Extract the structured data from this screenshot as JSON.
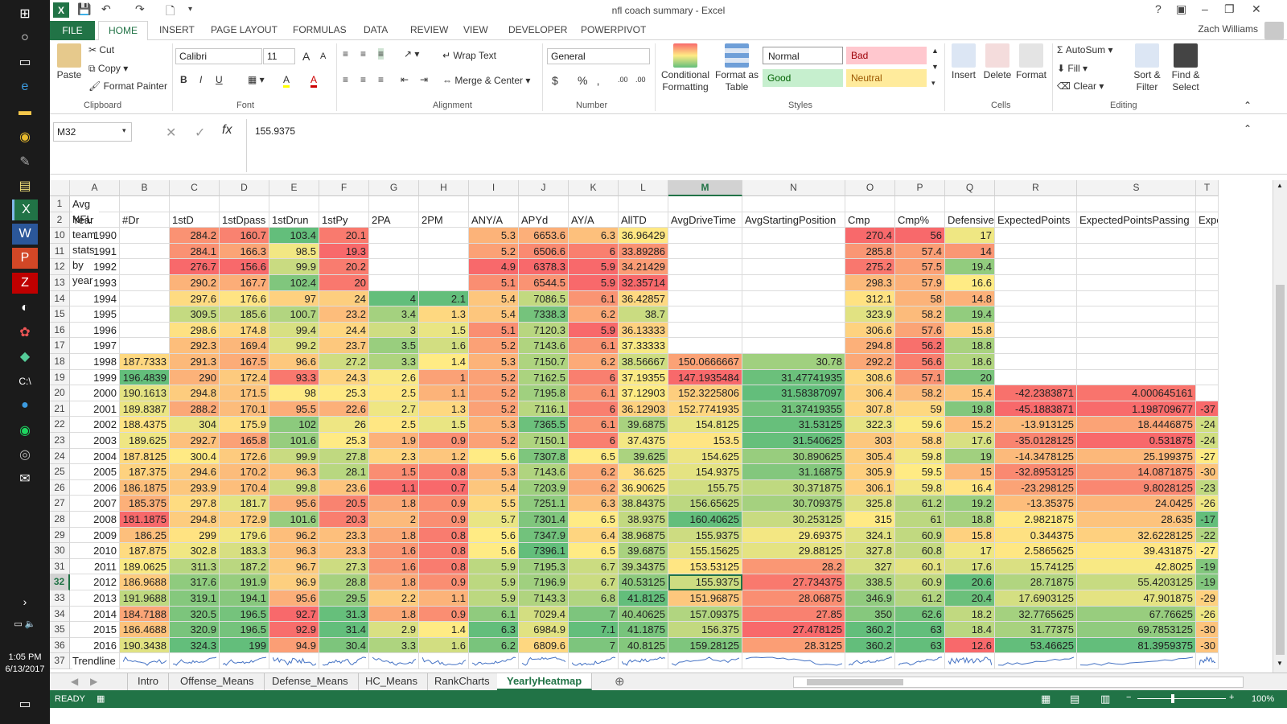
{
  "taskbar": {
    "icons": [
      "windows-start-icon",
      "cortana-icon",
      "task-view-icon",
      "edge-icon",
      "file-explorer-icon",
      "chrome-icon",
      "pen-icon",
      "notepad-icon",
      "excel-icon",
      "word-icon",
      "powerpoint-icon",
      "filezilla-icon",
      "app-icon",
      "settings-icon",
      "app-icon",
      "cmd-icon",
      "app-icon",
      "spotify-icon",
      "app-icon",
      "mail-icon"
    ],
    "time": "1:05 PM",
    "date": "6/13/2017"
  },
  "window": {
    "title": "nfl coach summary - Excel",
    "help": "?",
    "minimize": "–",
    "maximize": "❐",
    "close": "✕"
  },
  "quick_access": {
    "save": "💾",
    "undo": "↶",
    "redo": "↷",
    "new": "🗋",
    "customize": "▾"
  },
  "ribbon_tabs": [
    "FILE",
    "HOME",
    "INSERT",
    "PAGE LAYOUT",
    "FORMULAS",
    "DATA",
    "REVIEW",
    "VIEW",
    "DEVELOPER",
    "POWERPIVOT"
  ],
  "user": "Zach Williams",
  "ribbon": {
    "clipboard": {
      "paste": "Paste",
      "cut": "Cut",
      "copy": "Copy",
      "format_painter": "Format Painter",
      "label": "Clipboard"
    },
    "font": {
      "name": "Calibri",
      "size": "11",
      "bold": "B",
      "italic": "I",
      "underline": "U",
      "grow": "A",
      "shrink": "A",
      "fill": "A",
      "font_color": "A",
      "label": "Font"
    },
    "alignment": {
      "wrap_text": "Wrap Text",
      "merge_center": "Merge & Center",
      "label": "Alignment"
    },
    "number": {
      "format": "General",
      "dollar": "$",
      "percent": "%",
      "comma": "‚",
      "inc_decimal": ".00",
      "dec_decimal": ".00",
      "label": "Number"
    },
    "styles": {
      "conditional": "Conditional Formatting",
      "format_table": "Format as Table",
      "normal": "Normal",
      "bad": "Bad",
      "good": "Good",
      "neutral": "Neutral",
      "label": "Styles"
    },
    "cells": {
      "insert": "Insert",
      "delete": "Delete",
      "format": "Format",
      "label": "Cells"
    },
    "editing": {
      "autosum": "AutoSum",
      "fill": "Fill",
      "clear": "Clear",
      "sort_filter": "Sort & Filter",
      "find_select": "Find & Select",
      "label": "Editing"
    }
  },
  "formula_bar": {
    "name_box": "M32",
    "cancel": "✕",
    "enter": "✓",
    "fx": "fx",
    "value": "155.9375"
  },
  "sheet": {
    "columns": [
      "A",
      "B",
      "C",
      "D",
      "E",
      "F",
      "G",
      "H",
      "I",
      "J",
      "K",
      "L",
      "M",
      "N",
      "O",
      "P",
      "Q",
      "R",
      "S",
      "T"
    ],
    "title_row": {
      "row": "1",
      "text": "Avg NFL team stats by year"
    },
    "header_row": {
      "row": "2",
      "cells": [
        "Year",
        "#Dr",
        "1stD",
        "1stDpass",
        "1stDrun",
        "1stPy",
        "2PA",
        "2PM",
        "ANY/A",
        "APYd",
        "AY/A",
        "AllTD",
        "AvgDriveTime",
        "AvgStartingPosition",
        "Cmp",
        "Cmp%",
        "Defensive",
        "ExpectedPoints",
        "ExpectedPointsPassing",
        "Expecte"
      ]
    },
    "rows": [
      {
        "n": "10",
        "c": [
          "1990",
          "",
          "284.2",
          "160.7",
          "103.4",
          "20.1",
          "",
          "",
          "5.3",
          "6653.6",
          "6.3",
          "36.96429",
          "",
          "",
          "270.4",
          "56",
          "17",
          "",
          "",
          ""
        ]
      },
      {
        "n": "11",
        "c": [
          "1991",
          "",
          "284.1",
          "166.3",
          "98.5",
          "19.3",
          "",
          "",
          "5.2",
          "6506.6",
          "6",
          "33.89286",
          "",
          "",
          "285.8",
          "57.4",
          "14",
          "",
          "",
          ""
        ]
      },
      {
        "n": "12",
        "c": [
          "1992",
          "",
          "276.7",
          "156.6",
          "99.9",
          "20.2",
          "",
          "",
          "4.9",
          "6378.3",
          "5.9",
          "34.21429",
          "",
          "",
          "275.2",
          "57.5",
          "19.4",
          "",
          "",
          ""
        ]
      },
      {
        "n": "13",
        "c": [
          "1993",
          "",
          "290.2",
          "167.7",
          "102.4",
          "20",
          "",
          "",
          "5.1",
          "6544.5",
          "5.9",
          "32.35714",
          "",
          "",
          "298.3",
          "57.9",
          "16.6",
          "",
          "",
          ""
        ]
      },
      {
        "n": "14",
        "c": [
          "1994",
          "",
          "297.6",
          "176.6",
          "97",
          "24",
          "4",
          "2.1",
          "5.4",
          "7086.5",
          "6.1",
          "36.42857",
          "",
          "",
          "312.1",
          "58",
          "14.8",
          "",
          "",
          ""
        ]
      },
      {
        "n": "15",
        "c": [
          "1995",
          "",
          "309.5",
          "185.6",
          "100.7",
          "23.2",
          "3.4",
          "1.3",
          "5.4",
          "7338.3",
          "6.2",
          "38.7",
          "",
          "",
          "323.9",
          "58.2",
          "19.4",
          "",
          "",
          ""
        ]
      },
      {
        "n": "16",
        "c": [
          "1996",
          "",
          "298.6",
          "174.8",
          "99.4",
          "24.4",
          "3",
          "1.5",
          "5.1",
          "7120.3",
          "5.9",
          "36.13333",
          "",
          "",
          "306.6",
          "57.6",
          "15.8",
          "",
          "",
          ""
        ]
      },
      {
        "n": "17",
        "c": [
          "1997",
          "",
          "292.3",
          "169.4",
          "99.2",
          "23.7",
          "3.5",
          "1.6",
          "5.2",
          "7143.6",
          "6.1",
          "37.33333",
          "",
          "",
          "294.8",
          "56.2",
          "18.8",
          "",
          "",
          ""
        ]
      },
      {
        "n": "18",
        "c": [
          "1998",
          "187.7333",
          "291.3",
          "167.5",
          "96.6",
          "27.2",
          "3.3",
          "1.4",
          "5.3",
          "7150.7",
          "6.2",
          "38.56667",
          "150.0666667",
          "30.78",
          "292.2",
          "56.6",
          "18.6",
          "",
          "",
          ""
        ]
      },
      {
        "n": "19",
        "c": [
          "1999",
          "196.4839",
          "290",
          "172.4",
          "93.3",
          "24.3",
          "2.6",
          "1",
          "5.2",
          "7162.5",
          "6",
          "37.19355",
          "147.1935484",
          "31.47741935",
          "308.6",
          "57.1",
          "20",
          "",
          "",
          ""
        ]
      },
      {
        "n": "20",
        "c": [
          "2000",
          "190.1613",
          "294.8",
          "171.5",
          "98",
          "25.3",
          "2.5",
          "1.1",
          "5.2",
          "7195.8",
          "6.1",
          "37.12903",
          "152.3225806",
          "31.58387097",
          "306.4",
          "58.2",
          "15.4",
          "-42.2383871",
          "4.000645161",
          ""
        ]
      },
      {
        "n": "21",
        "c": [
          "2001",
          "189.8387",
          "288.2",
          "170.1",
          "95.5",
          "22.6",
          "2.7",
          "1.3",
          "5.2",
          "7116.1",
          "6",
          "36.12903",
          "152.7741935",
          "31.37419355",
          "307.8",
          "59",
          "19.8",
          "-45.1883871",
          "1.198709677",
          "-37"
        ]
      },
      {
        "n": "22",
        "c": [
          "2002",
          "188.4375",
          "304",
          "175.9",
          "102",
          "26",
          "2.5",
          "1.5",
          "5.3",
          "7365.5",
          "6.1",
          "39.6875",
          "154.8125",
          "31.53125",
          "322.3",
          "59.6",
          "15.2",
          "-13.913125",
          "18.4446875",
          "-24"
        ]
      },
      {
        "n": "23",
        "c": [
          "2003",
          "189.625",
          "292.7",
          "165.8",
          "101.6",
          "25.3",
          "1.9",
          "0.9",
          "5.2",
          "7150.1",
          "6",
          "37.4375",
          "153.5",
          "31.540625",
          "303",
          "58.8",
          "17.6",
          "-35.0128125",
          "0.531875",
          "-24"
        ]
      },
      {
        "n": "24",
        "c": [
          "2004",
          "187.8125",
          "300.4",
          "172.6",
          "99.9",
          "27.8",
          "2.3",
          "1.2",
          "5.6",
          "7307.8",
          "6.5",
          "39.625",
          "154.625",
          "30.890625",
          "305.4",
          "59.8",
          "19",
          "-14.3478125",
          "25.199375",
          "-27"
        ]
      },
      {
        "n": "25",
        "c": [
          "2005",
          "187.375",
          "294.6",
          "170.2",
          "96.3",
          "28.1",
          "1.5",
          "0.8",
          "5.3",
          "7143.6",
          "6.2",
          "36.625",
          "154.9375",
          "31.16875",
          "305.9",
          "59.5",
          "15",
          "-32.8953125",
          "14.0871875",
          "-30"
        ]
      },
      {
        "n": "26",
        "c": [
          "2006",
          "186.1875",
          "293.9",
          "170.4",
          "99.8",
          "23.6",
          "1.1",
          "0.7",
          "5.4",
          "7203.9",
          "6.2",
          "36.90625",
          "155.75",
          "30.371875",
          "306.1",
          "59.8",
          "16.4",
          "-23.298125",
          "9.8028125",
          "-23"
        ]
      },
      {
        "n": "27",
        "c": [
          "2007",
          "185.375",
          "297.8",
          "181.7",
          "95.6",
          "20.5",
          "1.8",
          "0.9",
          "5.5",
          "7251.1",
          "6.3",
          "38.84375",
          "156.65625",
          "30.709375",
          "325.8",
          "61.2",
          "19.2",
          "-13.35375",
          "24.0425",
          "-26"
        ]
      },
      {
        "n": "28",
        "c": [
          "2008",
          "181.1875",
          "294.8",
          "172.9",
          "101.6",
          "20.3",
          "2",
          "0.9",
          "5.7",
          "7301.4",
          "6.5",
          "38.9375",
          "160.40625",
          "30.253125",
          "315",
          "61",
          "18.8",
          "2.9821875",
          "28.635",
          "-17"
        ]
      },
      {
        "n": "29",
        "c": [
          "2009",
          "186.25",
          "299",
          "179.6",
          "96.2",
          "23.3",
          "1.8",
          "0.8",
          "5.6",
          "7347.9",
          "6.4",
          "38.96875",
          "155.9375",
          "29.69375",
          "324.1",
          "60.9",
          "15.8",
          "0.344375",
          "32.6228125",
          "-22"
        ]
      },
      {
        "n": "30",
        "c": [
          "2010",
          "187.875",
          "302.8",
          "183.3",
          "96.3",
          "23.3",
          "1.6",
          "0.8",
          "5.6",
          "7396.1",
          "6.5",
          "39.6875",
          "155.15625",
          "29.88125",
          "327.8",
          "60.8",
          "17",
          "2.5865625",
          "39.431875",
          "-27"
        ]
      },
      {
        "n": "31",
        "c": [
          "2011",
          "189.0625",
          "311.3",
          "187.2",
          "96.7",
          "27.3",
          "1.6",
          "0.8",
          "5.9",
          "7195.3",
          "6.7",
          "39.34375",
          "153.53125",
          "28.2",
          "327",
          "60.1",
          "17.6",
          "15.74125",
          "42.8025",
          "-19"
        ]
      },
      {
        "n": "32",
        "c": [
          "2012",
          "186.9688",
          "317.6",
          "191.9",
          "96.9",
          "28.8",
          "1.8",
          "0.9",
          "5.9",
          "7196.9",
          "6.7",
          "40.53125",
          "155.9375",
          "27.734375",
          "338.5",
          "60.9",
          "20.6",
          "28.71875",
          "55.4203125",
          "-19"
        ]
      },
      {
        "n": "33",
        "c": [
          "2013",
          "191.9688",
          "319.1",
          "194.1",
          "95.6",
          "29.5",
          "2.2",
          "1.1",
          "5.9",
          "7143.3",
          "6.8",
          "41.8125",
          "151.96875",
          "28.06875",
          "346.9",
          "61.2",
          "20.4",
          "17.6903125",
          "47.901875",
          "-29"
        ]
      },
      {
        "n": "34",
        "c": [
          "2014",
          "184.7188",
          "320.5",
          "196.5",
          "92.7",
          "31.3",
          "1.8",
          "0.9",
          "6.1",
          "7029.4",
          "7",
          "40.40625",
          "157.09375",
          "27.85",
          "350",
          "62.6",
          "18.2",
          "32.7765625",
          "67.76625",
          "-26"
        ]
      },
      {
        "n": "35",
        "c": [
          "2015",
          "186.4688",
          "320.9",
          "196.5",
          "92.9",
          "31.4",
          "2.9",
          "1.4",
          "6.3",
          "6984.9",
          "7.1",
          "41.1875",
          "156.375",
          "27.478125",
          "360.2",
          "63",
          "18.4",
          "31.77375",
          "69.7853125",
          "-30"
        ]
      },
      {
        "n": "36",
        "c": [
          "2016",
          "190.3438",
          "324.3",
          "199",
          "94.9",
          "30.4",
          "3.3",
          "1.6",
          "6.2",
          "6809.6",
          "7",
          "40.8125",
          "159.28125",
          "28.3125",
          "360.2",
          "63",
          "12.6",
          "53.46625",
          "81.3959375",
          "-30"
        ]
      }
    ],
    "trend_row": {
      "row": "37",
      "label": "Trendline"
    }
  },
  "sheet_tabs": [
    "Intro",
    "Offense_Means",
    "Defense_Means",
    "HC_Means",
    "RankCharts",
    "YearlyHeatmap"
  ],
  "status": {
    "ready": "READY",
    "zoom": "100%"
  },
  "colors": {
    "excel_green": "#217346",
    "heat_low": "#f8696b",
    "heat_mid": "#ffeb84",
    "heat_high": "#63be7b"
  }
}
